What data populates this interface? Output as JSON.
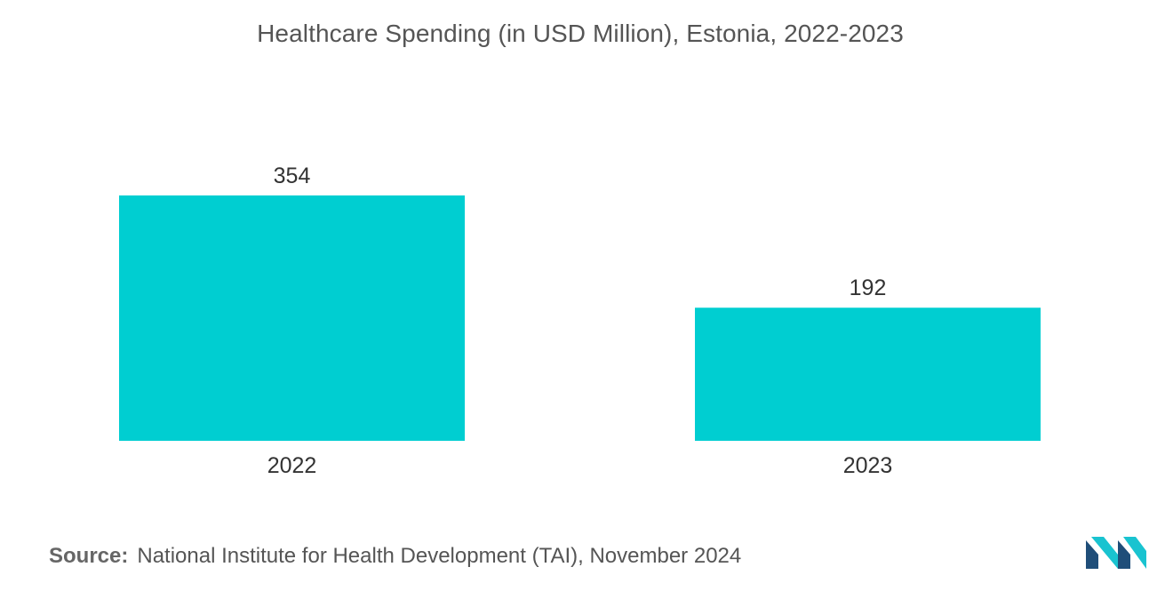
{
  "chart_data": {
    "type": "bar",
    "title": "Healthcare Spending (in USD Million), Estonia, 2022-2023",
    "categories": [
      "2022",
      "2023"
    ],
    "values": [
      354,
      192
    ],
    "data_labels": [
      "354",
      "192"
    ],
    "xlabel": "",
    "ylabel": "",
    "ylim": [
      0,
      450
    ],
    "grid": false,
    "legend": "none",
    "bar_color": "#00CED1"
  },
  "source": {
    "label": "Source:",
    "text": "National Institute for Health Development (TAI), November 2024"
  },
  "logo": {
    "icon": "mordor-intelligence-logo-icon",
    "colors": [
      "#1F4E79",
      "#19C3D0"
    ]
  }
}
